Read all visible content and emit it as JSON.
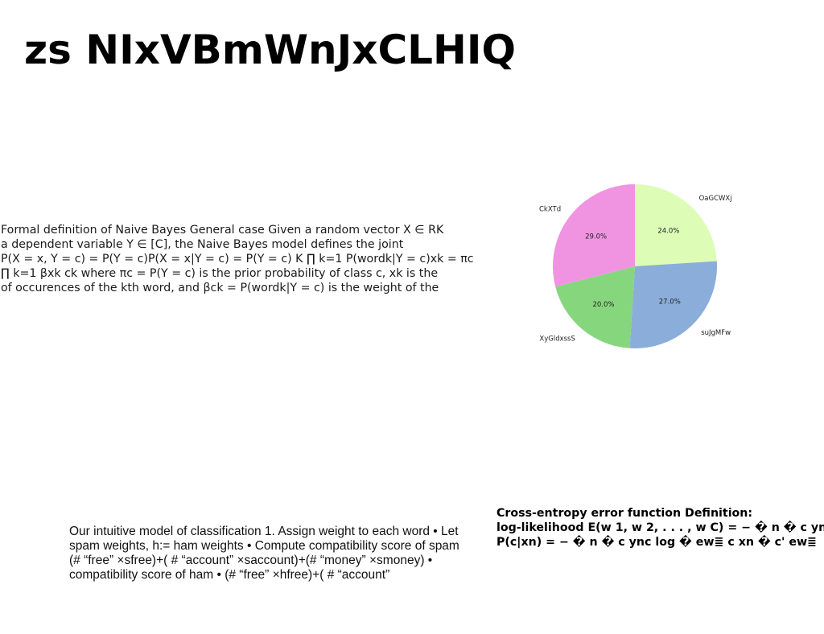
{
  "slide": {
    "title": "zs NIxVBmWnJxCLHIQ"
  },
  "left_text": {
    "lines": [
      "Formal definition of Naive Bayes General case Given a random vector X ∈ RK",
      "a dependent variable Y ∈ [C], the Naive Bayes model defines the joint",
      "P(X = x, Y = c) = P(Y = c)P(X = x|Y = c) = P(Y = c) K ∏ k=1 P(wordk|Y = c)xk = πc",
      "∏ k=1 βxk ck where πc = P(Y = c) is the prior probability of class c, xk is the",
      "of occurences of the kth word, and βck = P(wordk|Y = c) is the weight of the"
    ]
  },
  "bottom_text": {
    "lines": [
      "Our intuitive model of classification 1. Assign weight to each word • Let",
      "spam weights, h:= ham weights • Compute compatibility score of spam",
      "(# “free” ×sfree)+( # “account” ×saccount)+(# “money” ×smoney) •",
      "compatibility score of ham • (# “free” ×hfree)+( # “account”"
    ]
  },
  "right_text": {
    "lines": [
      "Cross-entropy error function Definition:",
      "log-likelihood E(w 1, w 2, . . . , w C) = − � n � c ync",
      "P(c|xn) = − � n � c ync log � ew≣ c xn � c' ew≣"
    ]
  },
  "chart_data": {
    "type": "pie",
    "start_angle": 90,
    "direction": "clockwise",
    "slices": [
      {
        "label": "OaGCWXj",
        "value": 24.0,
        "pct_label": "24.0%",
        "color": "#ddfdb7"
      },
      {
        "label": "suJgMFw",
        "value": 27.0,
        "pct_label": "27.0%",
        "color": "#8aaed9"
      },
      {
        "label": "XyGldxssS",
        "value": 20.0,
        "pct_label": "20.0%",
        "color": "#86d67e"
      },
      {
        "label": "CkXTd",
        "value": 29.0,
        "pct_label": "29.0%",
        "color": "#f094e2"
      }
    ]
  }
}
